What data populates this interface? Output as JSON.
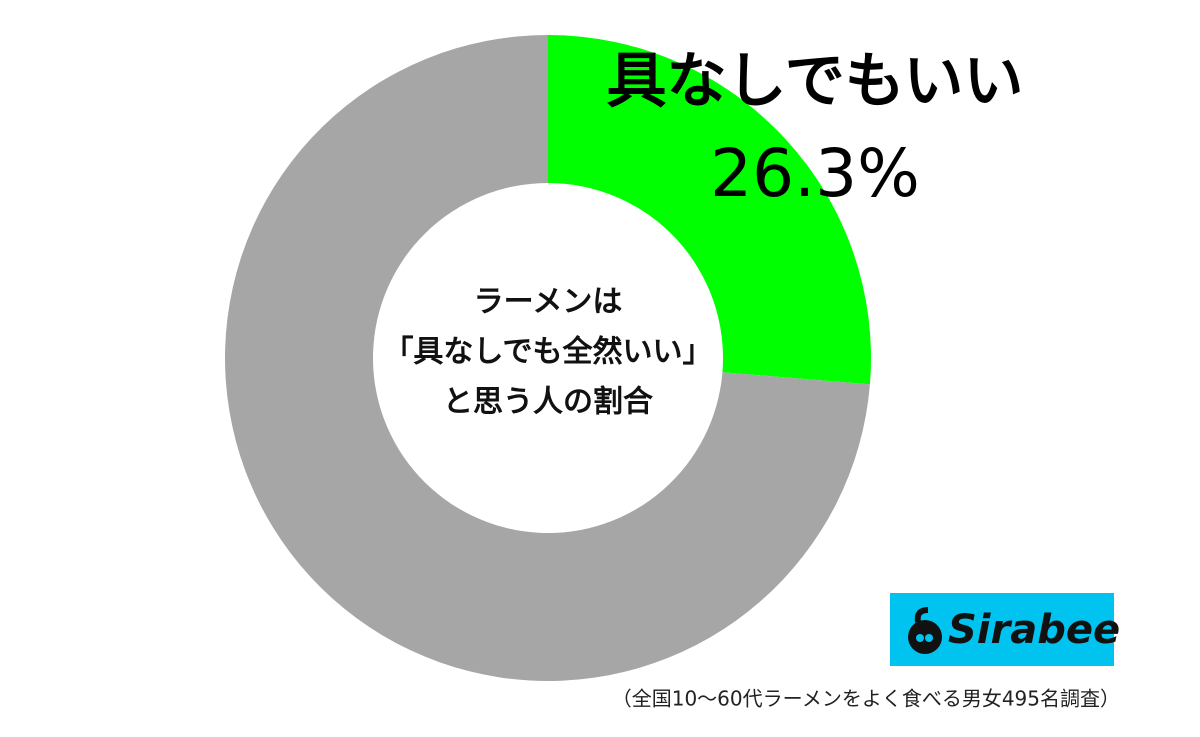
{
  "chart_data": {
    "type": "pie",
    "title": [
      "ラーメンは",
      "「具なしでも全然いい」",
      "と思う人の割合"
    ],
    "categories": [
      "具なしでもいい",
      null
    ],
    "values": [
      26.3,
      73.7
    ],
    "value_labels": [
      "26.3%",
      null
    ],
    "colors": [
      "#00ff00",
      "#a6a6a6"
    ],
    "note": "（全国10～60代ラーメンをよく食べる男女495名調査）"
  },
  "logo": "Sirabee"
}
